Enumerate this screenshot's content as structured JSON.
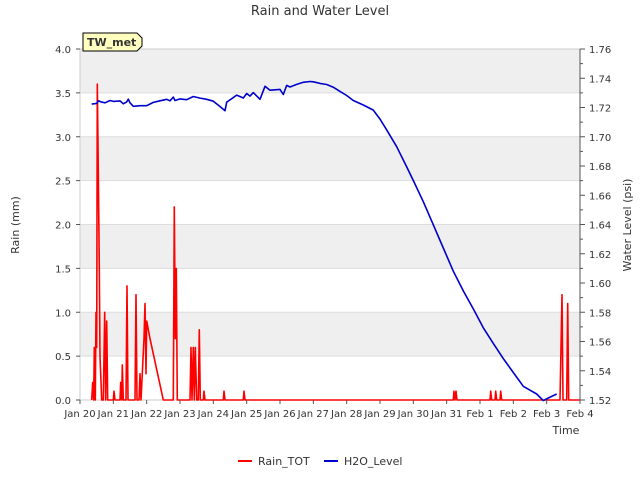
{
  "chart_data": {
    "type": "line",
    "title": "Rain and Water Level",
    "site_label": "TW_met",
    "xlabel": "Time",
    "ylabel_left": "Rain (mm)",
    "ylabel_right": "Water Level (psi)",
    "x_ticks": [
      "Jan 20",
      "Jan 21",
      "Jan 22",
      "Jan 23",
      "Jan 24",
      "Jan 25",
      "Jan 26",
      "Jan 27",
      "Jan 28",
      "Jan 29",
      "Jan 30",
      "Jan 31",
      "Feb 1",
      "Feb 2",
      "Feb 3",
      "Feb 4"
    ],
    "xlim": [
      0,
      15
    ],
    "y_left_ticks": [
      "0.0",
      "0.5",
      "1.0",
      "1.5",
      "2.0",
      "2.5",
      "3.0",
      "3.5",
      "4.0"
    ],
    "ylim_left": [
      0,
      4
    ],
    "y_right_ticks": [
      "1.52",
      "1.54",
      "1.56",
      "1.58",
      "1.60",
      "1.62",
      "1.64",
      "1.66",
      "1.68",
      "1.70",
      "1.72",
      "1.74",
      "1.76"
    ],
    "ylim_right": [
      1.52,
      1.76
    ],
    "colors": {
      "rain": "#ff0000",
      "water": "#0000cc",
      "band": "#efefef",
      "label_bg": "#ffffc0",
      "label_text": "#8b0000"
    },
    "series": [
      {
        "name": "Rain_TOT",
        "axis": "left",
        "color": "#ff0000",
        "points": [
          [
            0.35,
            0
          ],
          [
            0.38,
            0.2
          ],
          [
            0.41,
            0
          ],
          [
            0.43,
            0.6
          ],
          [
            0.46,
            0
          ],
          [
            0.48,
            1.0
          ],
          [
            0.5,
            0.6
          ],
          [
            0.52,
            3.6
          ],
          [
            0.55,
            2.6
          ],
          [
            0.58,
            1.5
          ],
          [
            0.6,
            0.5
          ],
          [
            0.65,
            0
          ],
          [
            0.7,
            0
          ],
          [
            0.74,
            1.0
          ],
          [
            0.77,
            0
          ],
          [
            0.8,
            0.9
          ],
          [
            0.83,
            0
          ],
          [
            1.0,
            0
          ],
          [
            1.02,
            0.1
          ],
          [
            1.05,
            0
          ],
          [
            1.2,
            0
          ],
          [
            1.22,
            0.2
          ],
          [
            1.25,
            0
          ],
          [
            1.27,
            0.4
          ],
          [
            1.3,
            0
          ],
          [
            1.38,
            0
          ],
          [
            1.41,
            1.3
          ],
          [
            1.44,
            0
          ],
          [
            1.65,
            0
          ],
          [
            1.68,
            1.2
          ],
          [
            1.71,
            0
          ],
          [
            1.77,
            0
          ],
          [
            1.8,
            0.3
          ],
          [
            1.83,
            0
          ],
          [
            1.92,
            0.7
          ],
          [
            1.95,
            1.1
          ],
          [
            1.98,
            0.3
          ],
          [
            2.0,
            0.9
          ],
          [
            2.1,
            0.7
          ],
          [
            2.5,
            0
          ],
          [
            2.8,
            0
          ],
          [
            2.83,
            2.2
          ],
          [
            2.86,
            0.7
          ],
          [
            2.89,
            1.5
          ],
          [
            2.92,
            0
          ],
          [
            3.3,
            0
          ],
          [
            3.33,
            0.6
          ],
          [
            3.36,
            0
          ],
          [
            3.4,
            0.6
          ],
          [
            3.43,
            0
          ],
          [
            3.46,
            0.6
          ],
          [
            3.5,
            0
          ],
          [
            3.55,
            0
          ],
          [
            3.58,
            0.8
          ],
          [
            3.61,
            0
          ],
          [
            3.7,
            0
          ],
          [
            3.72,
            0.1
          ],
          [
            3.75,
            0
          ],
          [
            4.3,
            0
          ],
          [
            4.32,
            0.1
          ],
          [
            4.35,
            0
          ],
          [
            4.9,
            0
          ],
          [
            4.92,
            0.1
          ],
          [
            4.95,
            0
          ],
          [
            11.2,
            0
          ],
          [
            11.22,
            0.1
          ],
          [
            11.25,
            0
          ],
          [
            11.28,
            0.1
          ],
          [
            11.31,
            0
          ],
          [
            12.3,
            0
          ],
          [
            12.32,
            0.1
          ],
          [
            12.35,
            0
          ],
          [
            12.45,
            0
          ],
          [
            12.47,
            0.1
          ],
          [
            12.5,
            0
          ],
          [
            12.6,
            0
          ],
          [
            12.62,
            0.1
          ],
          [
            12.65,
            0
          ],
          [
            14.4,
            0
          ],
          [
            14.43,
            0.6
          ],
          [
            14.46,
            1.2
          ],
          [
            14.49,
            0
          ],
          [
            14.6,
            0
          ],
          [
            14.63,
            1.1
          ],
          [
            14.66,
            0
          ],
          [
            15.5,
            0
          ]
        ]
      },
      {
        "name": "H2O_Level",
        "axis": "right",
        "color": "#0000cc",
        "points": [
          [
            0.35,
            1.7223
          ],
          [
            0.5,
            1.7228
          ],
          [
            0.55,
            1.7246
          ],
          [
            0.62,
            1.7239
          ],
          [
            0.75,
            1.7232
          ],
          [
            0.9,
            1.7248
          ],
          [
            1.0,
            1.7242
          ],
          [
            1.2,
            1.7245
          ],
          [
            1.3,
            1.7225
          ],
          [
            1.4,
            1.7238
          ],
          [
            1.45,
            1.7257
          ],
          [
            1.5,
            1.7232
          ],
          [
            1.6,
            1.7208
          ],
          [
            1.8,
            1.7212
          ],
          [
            2.0,
            1.7212
          ],
          [
            2.2,
            1.7235
          ],
          [
            2.4,
            1.7246
          ],
          [
            2.6,
            1.7256
          ],
          [
            2.7,
            1.7246
          ],
          [
            2.8,
            1.7271
          ],
          [
            2.85,
            1.7248
          ],
          [
            3.0,
            1.7259
          ],
          [
            3.2,
            1.7253
          ],
          [
            3.4,
            1.7275
          ],
          [
            3.6,
            1.7264
          ],
          [
            3.8,
            1.7256
          ],
          [
            4.0,
            1.7243
          ],
          [
            4.2,
            1.7207
          ],
          [
            4.35,
            1.7178
          ],
          [
            4.4,
            1.7237
          ],
          [
            4.55,
            1.726
          ],
          [
            4.7,
            1.7285
          ],
          [
            4.9,
            1.7265
          ],
          [
            5.0,
            1.7296
          ],
          [
            5.1,
            1.7278
          ],
          [
            5.2,
            1.7302
          ],
          [
            5.4,
            1.7256
          ],
          [
            5.55,
            1.7345
          ],
          [
            5.7,
            1.7318
          ],
          [
            6.0,
            1.7324
          ],
          [
            6.1,
            1.7289
          ],
          [
            6.2,
            1.7351
          ],
          [
            6.3,
            1.734
          ],
          [
            6.5,
            1.7358
          ],
          [
            6.7,
            1.7372
          ],
          [
            6.9,
            1.7378
          ],
          [
            7.0,
            1.7376
          ],
          [
            7.2,
            1.7365
          ],
          [
            7.4,
            1.7357
          ],
          [
            7.6,
            1.7339
          ],
          [
            7.8,
            1.731
          ],
          [
            8.0,
            1.7282
          ],
          [
            8.2,
            1.7248
          ],
          [
            8.5,
            1.7217
          ],
          [
            8.8,
            1.7182
          ],
          [
            9.0,
            1.7121
          ],
          [
            9.2,
            1.7047
          ],
          [
            9.5,
            1.6932
          ],
          [
            9.8,
            1.6794
          ],
          [
            10.0,
            1.6701
          ],
          [
            10.3,
            1.6556
          ],
          [
            10.6,
            1.6398
          ],
          [
            10.9,
            1.6239
          ],
          [
            11.2,
            1.6081
          ],
          [
            11.5,
            1.5946
          ],
          [
            11.8,
            1.5823
          ],
          [
            12.1,
            1.5694
          ],
          [
            12.4,
            1.5587
          ],
          [
            12.7,
            1.5483
          ],
          [
            13.0,
            1.5388
          ],
          [
            13.3,
            1.5294
          ],
          [
            13.5,
            1.5267
          ],
          [
            13.7,
            1.5241
          ],
          [
            13.9,
            1.5196
          ],
          [
            14.05,
            1.5214
          ],
          [
            14.3,
            1.5241
          ]
        ]
      }
    ],
    "legend": [
      "Rain_TOT",
      "H2O_Level"
    ],
    "legend_position": "bottom"
  }
}
